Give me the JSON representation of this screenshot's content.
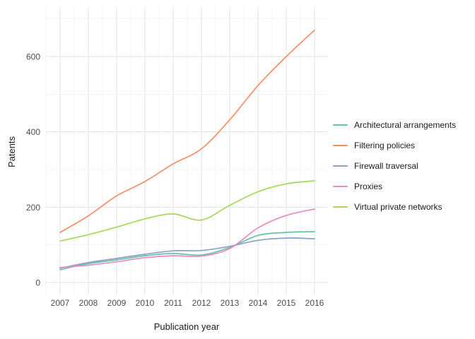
{
  "chart_data": {
    "type": "line",
    "title": "",
    "xlabel": "Publication year",
    "ylabel": "Patents",
    "x": [
      2007,
      2008,
      2009,
      2010,
      2011,
      2012,
      2013,
      2014,
      2015,
      2016
    ],
    "x_tick_labels": [
      "2007",
      "2008",
      "2009",
      "2010",
      "2011",
      "2012",
      "2013",
      "2014",
      "2015",
      "2016"
    ],
    "y_ticks": [
      0,
      200,
      400,
      600
    ],
    "y_tick_labels": [
      "0",
      "200",
      "400",
      "600"
    ],
    "y_minor_gridlines": [
      100,
      300,
      500,
      700
    ],
    "ylim": [
      0,
      730
    ],
    "grid": true,
    "legend_position": "right",
    "series": [
      {
        "name": "Architectural arrangements",
        "color": "#66C2A5",
        "values": [
          34,
          50,
          60,
          71,
          77,
          73,
          93,
          125,
          133,
          135
        ]
      },
      {
        "name": "Filtering policies",
        "color": "#FC8D62",
        "values": [
          133,
          177,
          230,
          268,
          315,
          355,
          432,
          523,
          600,
          670
        ]
      },
      {
        "name": "Firewall traversal",
        "color": "#8DA0CB",
        "values": [
          38,
          53,
          64,
          75,
          84,
          85,
          96,
          112,
          118,
          116
        ]
      },
      {
        "name": "Proxies",
        "color": "#E78AC3",
        "values": [
          40,
          46,
          55,
          66,
          71,
          70,
          90,
          145,
          178,
          195
        ]
      },
      {
        "name": "Virtual private networks",
        "color": "#A6D854",
        "values": [
          110,
          127,
          147,
          169,
          182,
          166,
          205,
          241,
          262,
          270
        ]
      }
    ]
  },
  "colors": {
    "background": "#FFFFFF",
    "grid_major": "#E3E3E3",
    "grid_minor": "#F2F2F2",
    "tick_label": "#4D4D4D",
    "axis_title": "#1A1A1A"
  }
}
